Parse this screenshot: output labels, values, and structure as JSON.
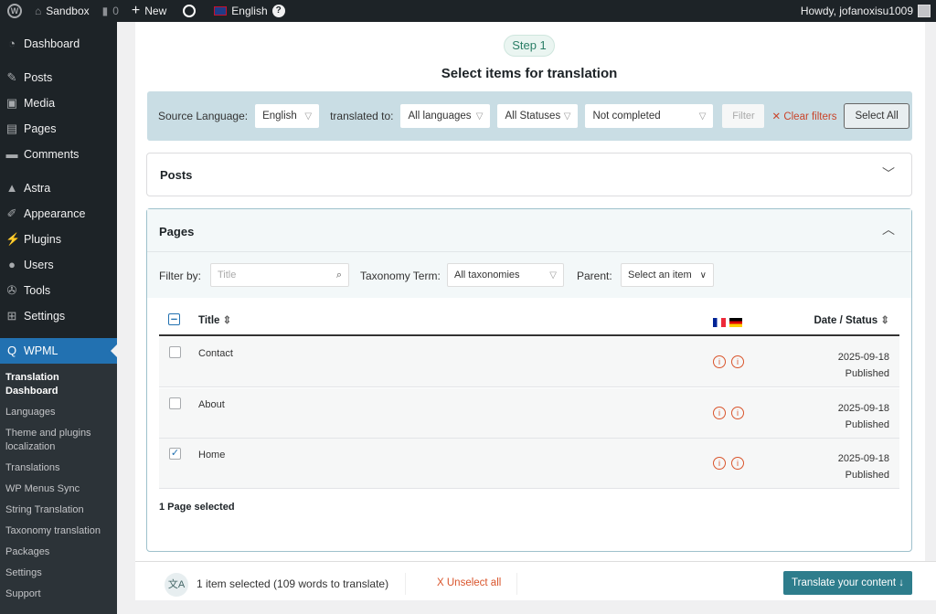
{
  "topbar": {
    "site": "Sandbox",
    "comments": "0",
    "new": "New",
    "language": "English",
    "howdy": "Howdy, jofanoxisu1009"
  },
  "sidebar": {
    "items": [
      {
        "label": "Dashboard",
        "icon": "dashboard-icon"
      },
      {
        "label": "Posts",
        "icon": "pin-icon"
      },
      {
        "label": "Media",
        "icon": "media-icon"
      },
      {
        "label": "Pages",
        "icon": "pages-icon"
      },
      {
        "label": "Comments",
        "icon": "comment-icon"
      },
      {
        "label": "Astra",
        "icon": "astra-icon"
      },
      {
        "label": "Appearance",
        "icon": "brush-icon"
      },
      {
        "label": "Plugins",
        "icon": "plugin-icon"
      },
      {
        "label": "Users",
        "icon": "user-icon"
      },
      {
        "label": "Tools",
        "icon": "wrench-icon"
      },
      {
        "label": "Settings",
        "icon": "settings-icon"
      },
      {
        "label": "WPML",
        "icon": "wpml-icon"
      }
    ],
    "submenu": [
      "Translation Dashboard",
      "Languages",
      "Theme and plugins localization",
      "Translations",
      "WP Menus Sync",
      "String Translation",
      "Taxonomy translation",
      "Packages",
      "Settings",
      "Support"
    ]
  },
  "main": {
    "step": "Step 1",
    "title": "Select items for translation",
    "filters": {
      "source_label": "Source Language:",
      "source": "English",
      "to_label": "translated to:",
      "to": "All languages",
      "status": "All Statuses",
      "completion": "Not completed",
      "filter": "Filter",
      "clear": "Clear filters",
      "select_all": "Select All"
    },
    "posts": {
      "title": "Posts"
    },
    "pages": {
      "title": "Pages",
      "filter_by": "Filter by:",
      "title_placeholder": "Title",
      "taxonomy_label": "Taxonomy Term:",
      "taxonomy": "All taxonomies",
      "parent_label": "Parent:",
      "parent": "Select an item",
      "columns": {
        "title": "Title",
        "date": "Date / Status"
      },
      "rows": [
        {
          "title": "Contact",
          "date": "2025-09-18",
          "status": "Published",
          "checked": false
        },
        {
          "title": "About",
          "date": "2025-09-18",
          "status": "Published",
          "checked": false
        },
        {
          "title": "Home",
          "date": "2025-09-18",
          "status": "Published",
          "checked": true
        }
      ],
      "selected": "1 Page selected"
    }
  },
  "bottom": {
    "summary": "1 item selected (109 words to translate)",
    "unselect": "X Unselect all",
    "translate": "Translate your content ↓"
  },
  "colors": {
    "accent": "#2271b1",
    "teal": "#2e7d8c",
    "danger": "#d9542b"
  }
}
